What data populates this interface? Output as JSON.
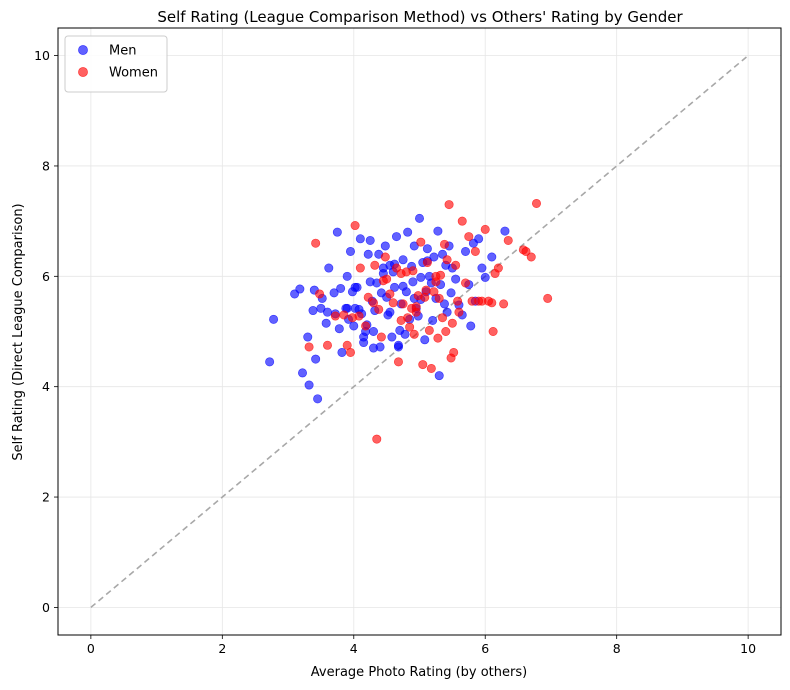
{
  "chart_data": {
    "type": "scatter",
    "title": "Self Rating (League Comparison Method) vs Others' Rating by Gender",
    "xlabel": "Average Photo Rating (by others)",
    "ylabel": "Self Rating (Direct League Comparison)",
    "xlim": [
      -0.5,
      10.5
    ],
    "ylim": [
      -0.5,
      10.5
    ],
    "xticks": [
      0,
      2,
      4,
      6,
      8,
      10
    ],
    "yticks": [
      0,
      2,
      4,
      6,
      8,
      10
    ],
    "grid": true,
    "legend_position": "top-left",
    "reference_line": {
      "x": [
        0,
        10
      ],
      "y": [
        0,
        10
      ],
      "color": "#a8a8a8",
      "style": "dashed"
    },
    "series": [
      {
        "name": "Men",
        "color": "#0000ff",
        "points": [
          [
            2.72,
            4.45
          ],
          [
            2.78,
            5.22
          ],
          [
            3.1,
            5.68
          ],
          [
            3.18,
            5.77
          ],
          [
            3.22,
            4.25
          ],
          [
            3.3,
            4.9
          ],
          [
            3.32,
            4.03
          ],
          [
            3.38,
            5.38
          ],
          [
            3.4,
            5.75
          ],
          [
            3.42,
            4.5
          ],
          [
            3.45,
            3.78
          ],
          [
            3.5,
            5.42
          ],
          [
            3.52,
            5.6
          ],
          [
            3.58,
            5.15
          ],
          [
            3.6,
            5.35
          ],
          [
            3.62,
            6.15
          ],
          [
            3.7,
            5.7
          ],
          [
            3.72,
            5.32
          ],
          [
            3.75,
            6.8
          ],
          [
            3.78,
            5.05
          ],
          [
            3.8,
            5.78
          ],
          [
            3.82,
            4.62
          ],
          [
            3.88,
            5.42
          ],
          [
            3.9,
            6.0
          ],
          [
            3.92,
            5.22
          ],
          [
            3.95,
            6.45
          ],
          [
            3.98,
            5.72
          ],
          [
            4.0,
            5.1
          ],
          [
            4.02,
            5.42
          ],
          [
            4.05,
            5.8
          ],
          [
            4.08,
            5.4
          ],
          [
            4.1,
            6.68
          ],
          [
            4.12,
            5.32
          ],
          [
            4.15,
            4.8
          ],
          [
            4.15,
            4.9
          ],
          [
            4.18,
            5.0
          ],
          [
            4.2,
            5.12
          ],
          [
            4.22,
            6.4
          ],
          [
            4.25,
            6.65
          ],
          [
            4.28,
            5.55
          ],
          [
            4.3,
            4.7
          ],
          [
            4.32,
            5.38
          ],
          [
            4.35,
            5.88
          ],
          [
            4.38,
            6.4
          ],
          [
            4.4,
            4.72
          ],
          [
            4.42,
            5.7
          ],
          [
            4.45,
            6.05
          ],
          [
            4.48,
            6.55
          ],
          [
            4.5,
            5.62
          ],
          [
            4.52,
            5.3
          ],
          [
            4.55,
            6.2
          ],
          [
            4.58,
            4.9
          ],
          [
            4.6,
            6.08
          ],
          [
            4.62,
            5.8
          ],
          [
            4.65,
            6.72
          ],
          [
            4.68,
            4.75
          ],
          [
            4.7,
            5.02
          ],
          [
            4.72,
            5.5
          ],
          [
            4.75,
            6.3
          ],
          [
            4.78,
            4.95
          ],
          [
            4.8,
            5.72
          ],
          [
            4.82,
            6.8
          ],
          [
            4.85,
            5.22
          ],
          [
            4.88,
            6.18
          ],
          [
            4.9,
            5.9
          ],
          [
            4.92,
            6.55
          ],
          [
            4.95,
            5.42
          ],
          [
            4.98,
            5.28
          ],
          [
            5.0,
            7.05
          ],
          [
            5.02,
            5.58
          ],
          [
            5.05,
            6.25
          ],
          [
            5.08,
            4.85
          ],
          [
            5.1,
            5.72
          ],
          [
            5.12,
            6.5
          ],
          [
            5.15,
            6.0
          ],
          [
            5.18,
            5.88
          ],
          [
            5.2,
            5.2
          ],
          [
            5.22,
            6.35
          ],
          [
            5.25,
            5.6
          ],
          [
            5.28,
            6.82
          ],
          [
            5.3,
            4.2
          ],
          [
            5.32,
            5.85
          ],
          [
            5.35,
            6.4
          ],
          [
            5.38,
            5.5
          ],
          [
            5.4,
            6.2
          ],
          [
            5.42,
            5.35
          ],
          [
            5.45,
            6.55
          ],
          [
            5.48,
            5.7
          ],
          [
            5.5,
            6.15
          ],
          [
            5.55,
            5.95
          ],
          [
            5.6,
            5.48
          ],
          [
            5.65,
            5.3
          ],
          [
            5.7,
            6.45
          ],
          [
            5.75,
            5.85
          ],
          [
            5.78,
            5.1
          ],
          [
            5.82,
            6.6
          ],
          [
            5.85,
            5.55
          ],
          [
            5.9,
            6.68
          ],
          [
            5.95,
            6.15
          ],
          [
            6.0,
            5.98
          ],
          [
            6.1,
            6.35
          ],
          [
            6.3,
            6.82
          ],
          [
            4.68,
            4.72
          ],
          [
            4.3,
            5.0
          ],
          [
            4.55,
            5.35
          ],
          [
            4.02,
            5.8
          ],
          [
            3.9,
            5.42
          ],
          [
            4.45,
            6.15
          ],
          [
            5.02,
            5.98
          ],
          [
            4.75,
            5.82
          ],
          [
            4.25,
            5.9
          ],
          [
            4.62,
            6.22
          ],
          [
            5.12,
            6.28
          ],
          [
            4.92,
            5.6
          ]
        ]
      },
      {
        "name": "Women",
        "color": "#ff0000",
        "points": [
          [
            3.32,
            4.72
          ],
          [
            3.42,
            6.6
          ],
          [
            3.48,
            5.68
          ],
          [
            3.6,
            4.75
          ],
          [
            3.72,
            5.28
          ],
          [
            3.85,
            5.3
          ],
          [
            3.9,
            4.75
          ],
          [
            3.95,
            4.62
          ],
          [
            3.98,
            5.25
          ],
          [
            4.02,
            6.92
          ],
          [
            4.1,
            6.15
          ],
          [
            4.18,
            5.1
          ],
          [
            4.22,
            5.62
          ],
          [
            4.3,
            5.52
          ],
          [
            4.32,
            6.2
          ],
          [
            4.35,
            3.05
          ],
          [
            4.38,
            5.4
          ],
          [
            4.42,
            4.9
          ],
          [
            4.45,
            5.92
          ],
          [
            4.48,
            6.35
          ],
          [
            4.5,
            5.95
          ],
          [
            4.55,
            5.68
          ],
          [
            4.6,
            5.52
          ],
          [
            4.65,
            6.15
          ],
          [
            4.68,
            4.45
          ],
          [
            4.72,
            5.2
          ],
          [
            4.75,
            5.5
          ],
          [
            4.8,
            6.08
          ],
          [
            4.82,
            5.25
          ],
          [
            4.85,
            5.08
          ],
          [
            4.88,
            5.42
          ],
          [
            4.9,
            6.1
          ],
          [
            4.92,
            4.95
          ],
          [
            4.95,
            5.35
          ],
          [
            4.98,
            5.65
          ],
          [
            5.02,
            6.62
          ],
          [
            5.05,
            4.4
          ],
          [
            5.08,
            5.62
          ],
          [
            5.1,
            5.75
          ],
          [
            5.12,
            6.25
          ],
          [
            5.15,
            5.02
          ],
          [
            5.18,
            4.33
          ],
          [
            5.22,
            5.72
          ],
          [
            5.25,
            6.0
          ],
          [
            5.28,
            4.88
          ],
          [
            5.3,
            5.6
          ],
          [
            5.32,
            6.02
          ],
          [
            5.35,
            5.25
          ],
          [
            5.38,
            6.58
          ],
          [
            5.4,
            5.0
          ],
          [
            5.42,
            6.3
          ],
          [
            5.45,
            7.3
          ],
          [
            5.48,
            4.52
          ],
          [
            5.5,
            5.15
          ],
          [
            5.52,
            4.62
          ],
          [
            5.55,
            6.2
          ],
          [
            5.58,
            5.55
          ],
          [
            5.6,
            5.35
          ],
          [
            5.65,
            7.0
          ],
          [
            5.7,
            5.88
          ],
          [
            5.75,
            6.72
          ],
          [
            5.8,
            5.55
          ],
          [
            5.85,
            6.45
          ],
          [
            5.9,
            5.55
          ],
          [
            5.95,
            5.55
          ],
          [
            6.0,
            6.85
          ],
          [
            6.05,
            5.55
          ],
          [
            6.1,
            5.52
          ],
          [
            6.15,
            6.05
          ],
          [
            6.2,
            6.15
          ],
          [
            6.28,
            5.5
          ],
          [
            6.35,
            6.65
          ],
          [
            6.58,
            6.48
          ],
          [
            6.62,
            6.45
          ],
          [
            6.7,
            6.35
          ],
          [
            6.78,
            7.32
          ],
          [
            6.95,
            5.6
          ],
          [
            6.12,
            5.0
          ],
          [
            4.08,
            5.28
          ],
          [
            4.95,
            5.45
          ],
          [
            5.25,
            5.9
          ],
          [
            4.72,
            6.05
          ]
        ]
      }
    ]
  }
}
